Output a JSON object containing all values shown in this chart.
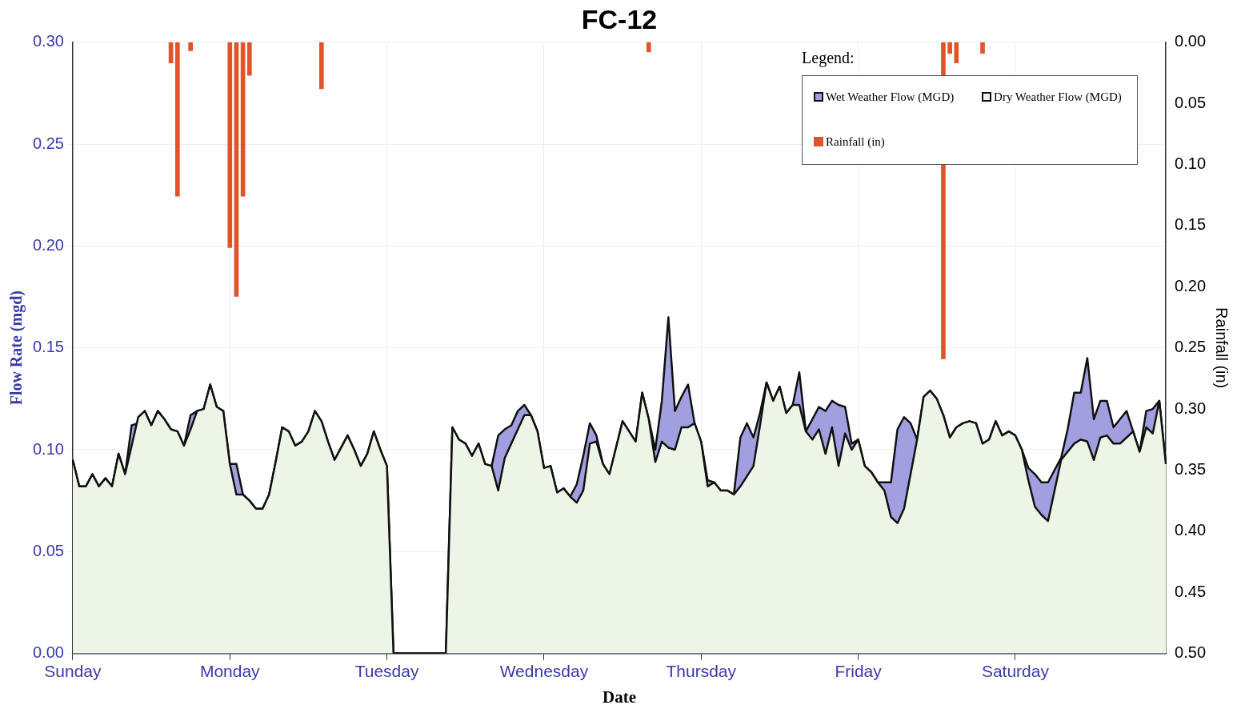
{
  "chart_data": {
    "type": "area",
    "title": "FC-12",
    "xlabel": "Date",
    "ylabel": "Flow Rate (mgd)",
    "y2label": "Rainfall (in)",
    "legend_title": "Legend:",
    "legend": "top right",
    "grid": true,
    "categories": [
      "Sunday",
      null,
      null,
      null,
      null,
      null,
      null,
      null,
      null,
      null,
      null,
      null,
      null,
      null,
      null,
      null,
      null,
      null,
      null,
      null,
      null,
      null,
      null,
      null,
      "Monday",
      null,
      null,
      null,
      null,
      null,
      null,
      null,
      null,
      null,
      null,
      null,
      null,
      null,
      null,
      null,
      null,
      null,
      null,
      null,
      null,
      null,
      null,
      null,
      "Tuesday",
      null,
      null,
      null,
      null,
      null,
      null,
      null,
      null,
      null,
      null,
      null,
      null,
      null,
      null,
      null,
      null,
      null,
      null,
      null,
      null,
      null,
      null,
      null,
      "Wednesday",
      null,
      null,
      null,
      null,
      null,
      null,
      null,
      null,
      null,
      null,
      null,
      null,
      null,
      null,
      null,
      null,
      null,
      null,
      null,
      null,
      null,
      null,
      null,
      "Thursday",
      null,
      null,
      null,
      null,
      null,
      null,
      null,
      null,
      null,
      null,
      null,
      null,
      null,
      null,
      null,
      null,
      null,
      null,
      null,
      null,
      null,
      null,
      null,
      "Friday",
      null,
      null,
      null,
      null,
      null,
      null,
      null,
      null,
      null,
      null,
      null,
      null,
      null,
      null,
      null,
      null,
      null,
      null,
      null,
      null,
      null,
      null,
      null,
      "Saturday",
      null,
      null,
      null,
      null,
      null,
      null,
      null,
      null,
      null,
      null,
      null,
      null,
      null,
      null,
      null,
      null,
      null,
      null,
      null,
      null,
      null,
      null,
      null
    ],
    "ylim": [
      0,
      0.3
    ],
    "yticks": [
      {
        "value": 0,
        "label": "0.00"
      },
      {
        "value": 0.05,
        "label": "0.05"
      },
      {
        "value": 0.1,
        "label": "0.10"
      },
      {
        "value": 0.15,
        "label": "0.15"
      },
      {
        "value": 0.2,
        "label": "0.20"
      },
      {
        "value": 0.25,
        "label": "0.25"
      },
      {
        "value": 0.3,
        "label": "0.30"
      }
    ],
    "y2lim": [
      0.5,
      0
    ],
    "y2ticks": [
      {
        "value": 0,
        "label": "0.00"
      },
      {
        "value": 0.05,
        "label": "0.05"
      },
      {
        "value": 0.1,
        "label": "0.10"
      },
      {
        "value": 0.15,
        "label": "0.15"
      },
      {
        "value": 0.2,
        "label": "0.20"
      },
      {
        "value": 0.25,
        "label": "0.25"
      },
      {
        "value": 0.3,
        "label": "0.30"
      },
      {
        "value": 0.35,
        "label": "0.35"
      },
      {
        "value": 0.4,
        "label": "0.40"
      },
      {
        "value": 0.45,
        "label": "0.45"
      },
      {
        "value": 0.5,
        "label": "0.50"
      }
    ],
    "series": [
      {
        "name": "Wet Weather Flow (MGD)",
        "color": "#a29fe0",
        "values": [
          0.095,
          0.082,
          0.082,
          0.088,
          0.082,
          0.086,
          0.082,
          0.098,
          0.088,
          0.112,
          0.113,
          0.119,
          0.112,
          0.119,
          0.115,
          0.11,
          0.109,
          0.102,
          0.117,
          0.119,
          0.12,
          0.132,
          0.121,
          0.119,
          0.093,
          0.093,
          0.078,
          0.075,
          0.071,
          0.071,
          0.078,
          0.094,
          0.111,
          0.109,
          0.102,
          0.104,
          0.109,
          0.119,
          0.114,
          0.104,
          0.095,
          0.101,
          0.107,
          0.1,
          0.092,
          0.098,
          0.109,
          0.1,
          0.092,
          0,
          0,
          0,
          0,
          0,
          0,
          0,
          0,
          0,
          0.111,
          0.105,
          0.103,
          0.097,
          0.103,
          0.093,
          0.092,
          0.107,
          0.11,
          0.112,
          0.119,
          0.122,
          0.117,
          0.109,
          0.091,
          0.092,
          0.079,
          0.081,
          0.077,
          0.083,
          0.097,
          0.113,
          0.107,
          0.093,
          0.088,
          0.101,
          0.114,
          0.109,
          0.104,
          0.128,
          0.115,
          0.1,
          0.124,
          0.165,
          0.119,
          0.126,
          0.132,
          0.113,
          0.104,
          0.085,
          0.084,
          0.08,
          0.08,
          0.078,
          0.106,
          0.113,
          0.106,
          0.118,
          0.133,
          0.124,
          0.131,
          0.118,
          0.122,
          0.138,
          0.109,
          0.115,
          0.121,
          0.119,
          0.124,
          0.122,
          0.121,
          0.103,
          0.105,
          0.092,
          0.089,
          0.084,
          0.084,
          0.084,
          0.11,
          0.116,
          0.113,
          0.105,
          0.126,
          0.129,
          0.125,
          0.117,
          0.106,
          0.111,
          0.113,
          0.114,
          0.113,
          0.103,
          0.105,
          0.114,
          0.107,
          0.109,
          0.107,
          0.1,
          0.091,
          0.088,
          0.084,
          0.084,
          0.09,
          0.096,
          0.11,
          0.128,
          0.128,
          0.145,
          0.115,
          0.124,
          0.124,
          0.111,
          0.115,
          0.119,
          0.109,
          0.099,
          0.119,
          0.12,
          0.124,
          0.093
        ]
      },
      {
        "name": "Dry Weather Flow (MGD)",
        "color": "#edf5e6",
        "values": [
          0.095,
          0.082,
          0.082,
          0.088,
          0.082,
          0.086,
          0.082,
          0.098,
          0.088,
          0.102,
          0.116,
          0.119,
          0.112,
          0.119,
          0.115,
          0.11,
          0.109,
          0.102,
          0.11,
          0.119,
          0.12,
          0.132,
          0.121,
          0.119,
          0.093,
          0.078,
          0.078,
          0.075,
          0.071,
          0.071,
          0.078,
          0.094,
          0.111,
          0.109,
          0.102,
          0.104,
          0.109,
          0.119,
          0.114,
          0.104,
          0.095,
          0.101,
          0.107,
          0.1,
          0.092,
          0.098,
          0.109,
          0.1,
          0.092,
          0,
          0,
          0,
          0,
          0,
          0,
          0,
          0,
          0,
          0.111,
          0.105,
          0.103,
          0.097,
          0.103,
          0.093,
          0.092,
          0.08,
          0.096,
          0.103,
          0.11,
          0.117,
          0.117,
          0.109,
          0.091,
          0.092,
          0.079,
          0.081,
          0.077,
          0.074,
          0.08,
          0.103,
          0.104,
          0.093,
          0.088,
          0.101,
          0.114,
          0.109,
          0.104,
          0.128,
          0.115,
          0.094,
          0.104,
          0.101,
          0.1,
          0.111,
          0.111,
          0.113,
          0.104,
          0.082,
          0.084,
          0.08,
          0.08,
          0.078,
          0.082,
          0.087,
          0.092,
          0.112,
          0.133,
          0.124,
          0.131,
          0.118,
          0.122,
          0.122,
          0.109,
          0.105,
          0.11,
          0.098,
          0.111,
          0.092,
          0.108,
          0.1,
          0.105,
          0.092,
          0.089,
          0.084,
          0.08,
          0.067,
          0.064,
          0.071,
          0.088,
          0.105,
          0.126,
          0.129,
          0.125,
          0.117,
          0.106,
          0.111,
          0.113,
          0.114,
          0.113,
          0.103,
          0.105,
          0.114,
          0.107,
          0.109,
          0.107,
          0.1,
          0.085,
          0.072,
          0.068,
          0.065,
          0.08,
          0.095,
          0.099,
          0.103,
          0.105,
          0.104,
          0.095,
          0.106,
          0.107,
          0.103,
          0.103,
          0.106,
          0.109,
          0.099,
          0.111,
          0.108,
          0.124,
          0.093
        ]
      },
      {
        "name": "Rainfall (in)",
        "type": "bar",
        "axis": "y2",
        "color": "#e0542a",
        "values": [
          null,
          null,
          null,
          null,
          null,
          null,
          null,
          null,
          null,
          null,
          null,
          null,
          null,
          null,
          null,
          0.017,
          0.126,
          null,
          0.007,
          null,
          null,
          null,
          null,
          null,
          0.168,
          0.208,
          0.126,
          0.027,
          null,
          null,
          null,
          null,
          null,
          null,
          null,
          null,
          null,
          null,
          0.038,
          null,
          null,
          null,
          null,
          null,
          null,
          null,
          null,
          null,
          null,
          null,
          null,
          null,
          null,
          null,
          null,
          null,
          null,
          null,
          null,
          null,
          null,
          null,
          null,
          null,
          null,
          null,
          null,
          null,
          null,
          null,
          null,
          null,
          null,
          null,
          null,
          null,
          null,
          null,
          null,
          null,
          null,
          null,
          null,
          null,
          null,
          null,
          null,
          null,
          0.008,
          null,
          null,
          null,
          null,
          null,
          null,
          null,
          null,
          null,
          null,
          null,
          null,
          null,
          null,
          null,
          null,
          null,
          null,
          null,
          null,
          null,
          null,
          null,
          null,
          null,
          null,
          null,
          null,
          null,
          null,
          null,
          null,
          null,
          null,
          null,
          null,
          null,
          null,
          null,
          null,
          null,
          null,
          null,
          null,
          0.259,
          0.009,
          0.017,
          null,
          null,
          null,
          0.009,
          null,
          null,
          null,
          null,
          null,
          null,
          null,
          null,
          null,
          null,
          null,
          null,
          null,
          null,
          null,
          null,
          null,
          null,
          null,
          null,
          null,
          null,
          null,
          null,
          null,
          null,
          null,
          null
        ]
      }
    ]
  }
}
